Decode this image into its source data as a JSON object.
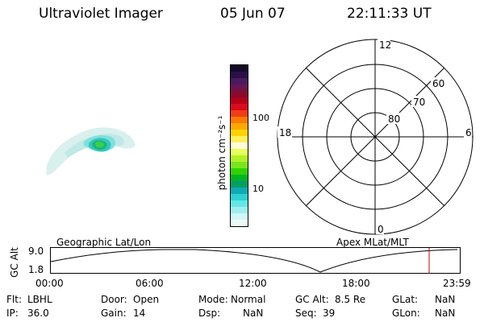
{
  "header": {
    "title": "Ultraviolet Imager",
    "date": "05 Jun 07",
    "time": "22:11:33 UT"
  },
  "colorbar": {
    "unit_label": "photon cm⁻²s⁻¹",
    "tick_labels": [
      "100",
      "10"
    ],
    "colors": [
      "#140a28",
      "#2a1046",
      "#4a1a5e",
      "#6a1450",
      "#8a0a2a",
      "#b4001c",
      "#dc0a1c",
      "#f03c14",
      "#ff7a00",
      "#ffa800",
      "#ffd200",
      "#ffef60",
      "#fffcd8",
      "#e6ff5a",
      "#b4f028",
      "#78e61e",
      "#32d200",
      "#00b428",
      "#00a064",
      "#10aab4",
      "#2ad2d2",
      "#64e6e6",
      "#a0eeee",
      "#d2f6f6",
      "#eafafa"
    ]
  },
  "polar": {
    "mlt_labels": {
      "top": "12",
      "left": "18",
      "right": "6",
      "bottom": "0"
    },
    "lat_labels": [
      "60",
      "70",
      "80"
    ]
  },
  "timeline": {
    "gc_alt_label": "GC Alt",
    "y_ticks": [
      "9.0",
      "1.8"
    ],
    "left_title": "Geographic Lat/Lon",
    "right_title": "Apex  MLat/MLT",
    "x_ticks": [
      "00:00",
      "06:00",
      "12:00",
      "18:00",
      "23:59"
    ],
    "marker_color": "#cc0000"
  },
  "status": {
    "flt_label": "Flt:",
    "flt_value": "LBHL",
    "ip_label": "IP:",
    "ip_value": "36.0",
    "door_label": "Door:",
    "door_value": "Open",
    "gain_label": "Gain:",
    "gain_value": "14",
    "mode_label": "Mode:",
    "mode_value": "Normal",
    "dsp_label": "Dsp:",
    "dsp_value": "NaN",
    "gcalt_label": "GC Alt:",
    "gcalt_value": "8.5 Re",
    "seq_label": "Seq:",
    "seq_value": "39",
    "glat_label": "GLat:",
    "glat_value": "NaN",
    "glon_label": "GLon:",
    "glon_value": "NaN"
  },
  "image_palette": {
    "outer": "#d8f0ee",
    "mid": "#7fe0dc",
    "teal": "#30c8c0",
    "inner": "#1fb37a",
    "core": "#3bd04a"
  }
}
